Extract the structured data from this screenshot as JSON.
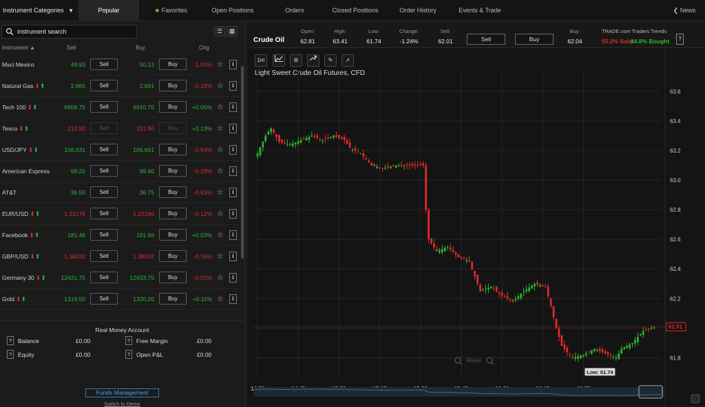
{
  "topnav": {
    "category": "Instrument Categories",
    "tabs": [
      "Popular",
      "Favorites",
      "Open Positions",
      "Orders",
      "Closed Positions",
      "Order History",
      "Events & Trade"
    ],
    "news": "News"
  },
  "search": {
    "placeholder": "instrument search"
  },
  "columns": {
    "instrument": "Instrument",
    "sell": "Sell",
    "buy": "Buy",
    "chg": "Chg"
  },
  "buttons": {
    "sell": "Sell",
    "buy": "Buy"
  },
  "instruments": [
    {
      "name": "Msci Mexico",
      "arrows": "",
      "sell": "49.93",
      "buy": "50.13",
      "chg": "-1.03%",
      "sell_color": "g",
      "buy_color": "g",
      "chg_color": "r"
    },
    {
      "name": "Natural Gas",
      "arrows": "both",
      "sell": "2.685",
      "buy": "2.691",
      "chg": "-0.15%",
      "sell_color": "g",
      "buy_color": "g",
      "chg_color": "r"
    },
    {
      "name": "Tech 100",
      "arrows": "both",
      "sell": "6909.75",
      "buy": "6910.75",
      "chg": "+0.05%",
      "sell_color": "g",
      "buy_color": "g",
      "chg_color": "g"
    },
    {
      "name": "Tesco",
      "arrows": "both",
      "sell": "210.80",
      "buy": "211.80",
      "chg": "+2.13%",
      "sell_color": "r",
      "buy_color": "r",
      "chg_color": "g",
      "disabled": true
    },
    {
      "name": "USD/JPY",
      "arrows": "both",
      "sell": "106.631",
      "buy": "106.661",
      "chg": "-0.54%",
      "sell_color": "g",
      "buy_color": "g",
      "chg_color": "r"
    },
    {
      "name": "American Express",
      "arrows": "",
      "sell": "99.20",
      "buy": "99.40",
      "chg": "-0.29%",
      "sell_color": "g",
      "buy_color": "g",
      "chg_color": "r"
    },
    {
      "name": "AT&T",
      "arrows": "",
      "sell": "36.55",
      "buy": "36.75",
      "chg": "-0.63%",
      "sell_color": "g",
      "buy_color": "g",
      "chg_color": "r"
    },
    {
      "name": "EUR/USD",
      "arrows": "both",
      "sell": "1.22176",
      "buy": "1.22186",
      "chg": "-0.12%",
      "sell_color": "r",
      "buy_color": "r",
      "chg_color": "r"
    },
    {
      "name": "Facebook",
      "arrows": "both",
      "sell": "181.46",
      "buy": "181.66",
      "chg": "+0.03%",
      "sell_color": "g",
      "buy_color": "g",
      "chg_color": "g"
    },
    {
      "name": "GBP/USD",
      "arrows": "both",
      "sell": "1.38032",
      "buy": "1.38052",
      "chg": "-0.76%",
      "sell_color": "r",
      "buy_color": "r",
      "chg_color": "r"
    },
    {
      "name": "Germany 30",
      "arrows": "both",
      "sell": "12431.75",
      "buy": "12433.75",
      "chg": "-0.01%",
      "sell_color": "g",
      "buy_color": "g",
      "chg_color": "r"
    },
    {
      "name": "Gold",
      "arrows": "both",
      "sell": "1319.50",
      "buy": "1320.20",
      "chg": "+0.11%",
      "sell_color": "g",
      "buy_color": "g",
      "chg_color": "g"
    }
  ],
  "account": {
    "title": "Real Money Account",
    "balance_label": "Balance",
    "balance": "£0.00",
    "free_margin_label": "Free Margin",
    "free_margin": "£0.00",
    "equity_label": "Equity",
    "equity": "£0.00",
    "open_pl_label": "Open P&L",
    "open_pl": "£0.00",
    "funds_button": "Funds Management",
    "switch_link": "Switch to Demo"
  },
  "instrument_header": {
    "name": "Crude Oil",
    "open_label": "Open:",
    "open": "62.81",
    "high_label": "High:",
    "high": "63.41",
    "low_label": "Low:",
    "low": "61.74",
    "change_label": "Change:",
    "change": "-1.24%",
    "sell_label": "Sell:",
    "sell": "62.01",
    "buy_label": "Buy:",
    "buy": "62.04",
    "sell_button": "Sell",
    "buy_button": "Buy",
    "trends_title": "TRADE.com Traders Trends",
    "sold": "55.2% Sold",
    "bought": "44.8% Bought",
    "help": "?"
  },
  "chart_toolbar": {
    "interval": "1m"
  },
  "chart_data": {
    "type": "candlestick",
    "title": "Light Sweet Crude Oil Futures, CFD",
    "x_ticks": [
      "14:30",
      "14:45",
      "15:00",
      "15:15",
      "15:30",
      "15:45",
      "16:00",
      "16:15",
      "16:30"
    ],
    "y_ticks": [
      61.8,
      62.0,
      62.2,
      62.4,
      62.6,
      62.8,
      63.0,
      63.2,
      63.4,
      63.6
    ],
    "ylim": [
      61.7,
      63.65
    ],
    "current_price": "62.01",
    "low_annotation": "Low: 61.74",
    "reset_label": "Reset",
    "anchors": [
      [
        0,
        63.18
      ],
      [
        3,
        63.3
      ],
      [
        5,
        63.35
      ],
      [
        8,
        63.26
      ],
      [
        12,
        63.24
      ],
      [
        16,
        63.27
      ],
      [
        20,
        63.3
      ],
      [
        24,
        63.27
      ],
      [
        28,
        63.3
      ],
      [
        32,
        63.27
      ],
      [
        34,
        63.22
      ],
      [
        38,
        63.18
      ],
      [
        42,
        63.1
      ],
      [
        46,
        63.08
      ],
      [
        52,
        63.1
      ],
      [
        58,
        63.1
      ],
      [
        61,
        63.1
      ],
      [
        62,
        62.8
      ],
      [
        63,
        62.6
      ],
      [
        66,
        62.52
      ],
      [
        70,
        62.55
      ],
      [
        74,
        62.48
      ],
      [
        78,
        62.45
      ],
      [
        82,
        62.25
      ],
      [
        86,
        62.28
      ],
      [
        90,
        62.22
      ],
      [
        94,
        62.18
      ],
      [
        98,
        62.25
      ],
      [
        102,
        62.3
      ],
      [
        106,
        62.28
      ],
      [
        108,
        62.15
      ],
      [
        110,
        62.0
      ],
      [
        112,
        61.88
      ],
      [
        116,
        61.8
      ],
      [
        120,
        61.82
      ],
      [
        124,
        61.86
      ],
      [
        128,
        61.83
      ],
      [
        132,
        61.8
      ],
      [
        134,
        61.86
      ],
      [
        138,
        61.9
      ],
      [
        142,
        61.98
      ],
      [
        146,
        62.01
      ]
    ]
  }
}
